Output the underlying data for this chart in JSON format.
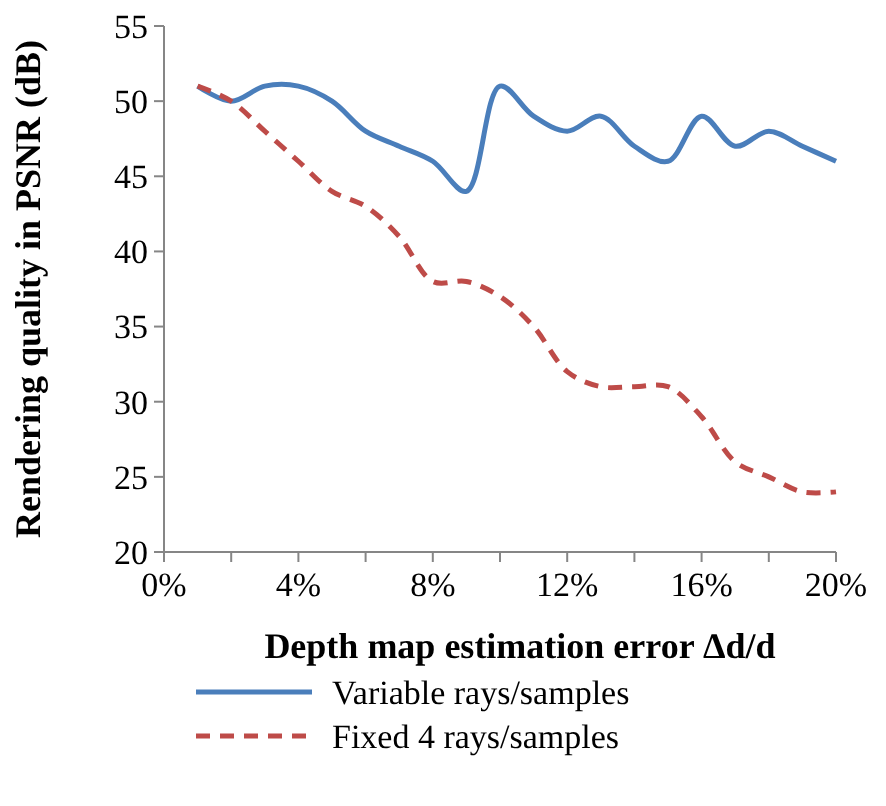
{
  "chart_data": {
    "type": "line",
    "xlabel": "Depth map estimation error Δd/d",
    "ylabel": "Rendering quality in PSNR (dB)",
    "x": [
      1,
      2,
      3,
      4,
      5,
      6,
      7,
      8,
      9,
      10,
      11,
      12,
      13,
      14,
      15,
      16,
      17,
      18,
      19,
      20
    ],
    "xlim": [
      0,
      20
    ],
    "xticks": [
      {
        "value": 0,
        "label": "0%"
      },
      {
        "value": 2,
        "label": null
      },
      {
        "value": 4,
        "label": "4%"
      },
      {
        "value": 6,
        "label": null
      },
      {
        "value": 8,
        "label": "8%"
      },
      {
        "value": 10,
        "label": null
      },
      {
        "value": 12,
        "label": "12%"
      },
      {
        "value": 14,
        "label": null
      },
      {
        "value": 16,
        "label": "16%"
      },
      {
        "value": 18,
        "label": null
      },
      {
        "value": 20,
        "label": "20%"
      }
    ],
    "ylim": [
      20,
      55
    ],
    "yticks": [
      20,
      25,
      30,
      35,
      40,
      45,
      50,
      55
    ],
    "grid": false,
    "legend": "bottom",
    "marker": "none",
    "series": [
      {
        "name": "Variable rays/samples",
        "color": "#4a7ebb",
        "line_style": "solid",
        "values": [
          51,
          50,
          51,
          51,
          50,
          48,
          47,
          46,
          44,
          51,
          49,
          48,
          49,
          47,
          46,
          49,
          47,
          48,
          47,
          46
        ]
      },
      {
        "name": "Fixed 4 rays/samples",
        "color": "#be4b48",
        "line_style": "dashed",
        "values": [
          51,
          50,
          48,
          46,
          44,
          43,
          41,
          38,
          38,
          37,
          35,
          32,
          31,
          31,
          31,
          29,
          26,
          25,
          24,
          24
        ]
      }
    ]
  }
}
